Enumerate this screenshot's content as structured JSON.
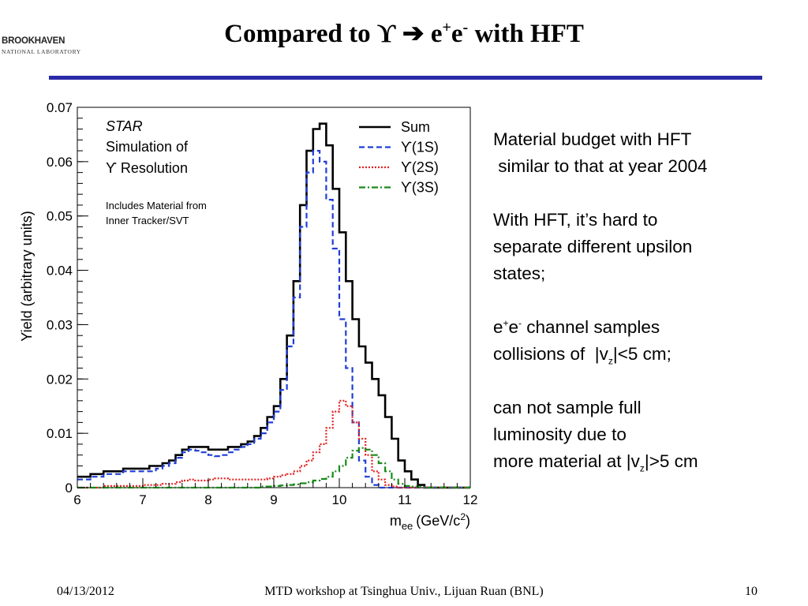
{
  "logo": {
    "name": "BROOKHAVEN",
    "subtitle": "NATIONAL LABORATORY"
  },
  "slide": {
    "title_pre": "Compared to ϒ ",
    "title_arrow": "➔",
    "title_e1": " e",
    "title_plus": "+",
    "title_e2": "e",
    "title_minus": "-",
    "title_post": " with HFT"
  },
  "notes": {
    "line1": "Material budget with HFT",
    "line2": " similar to that at year 2004",
    "line3": "With HFT, it’s hard to",
    "line4": "separate different upsilon",
    "line5": "states;",
    "l6_e1": "e",
    "l6_plus": "+",
    "l6_e2": "e",
    "l6_minus": "-",
    "l6_rest": " channel samples",
    "l7_pre": "collisions of  |v",
    "l7_sub": "z",
    "l7_post": "|<5 cm;",
    "line8": "can not sample full",
    "line9": "luminosity due to",
    "l10_pre": "more material at |v",
    "l10_sub": "z",
    "l10_post": "|>5 cm"
  },
  "footer": {
    "date": "04/13/2012",
    "center": "MTD workshop at Tsinghua Univ., Lijuan Ruan (BNL)",
    "page": "10"
  },
  "chart_data": {
    "type": "line",
    "style": "step-histogram",
    "x_label_main": "m",
    "x_label_sub": "ee",
    "x_label_unit": "(GeV/c",
    "x_label_sup": "2",
    "x_label_close": ")",
    "ylabel": "Yield (arbitrary units)",
    "xlim": [
      6,
      12
    ],
    "ylim": [
      0,
      0.07
    ],
    "xticks": [
      "6",
      "7",
      "8",
      "9",
      "10",
      "11",
      "12"
    ],
    "yticks": [
      "0",
      "0.01",
      "0.02",
      "0.03",
      "0.04",
      "0.05",
      "0.06",
      "0.07"
    ],
    "annotations": {
      "star": "STAR",
      "sim": "Simulation of",
      "res": "ϒ Resolution",
      "incl1": "Includes Material from",
      "incl2": "Inner Tracker/SVT"
    },
    "bin_edges_start": 6.0,
    "bin_width": 0.1,
    "series": [
      {
        "name": "Sum",
        "color": "#000000",
        "dash": "solid",
        "values": [
          0.002,
          0.002,
          0.0025,
          0.0025,
          0.003,
          0.003,
          0.003,
          0.0035,
          0.0035,
          0.0035,
          0.0035,
          0.004,
          0.004,
          0.0045,
          0.005,
          0.006,
          0.007,
          0.0075,
          0.0075,
          0.0075,
          0.007,
          0.007,
          0.007,
          0.0075,
          0.0075,
          0.008,
          0.0085,
          0.0095,
          0.011,
          0.013,
          0.015,
          0.02,
          0.028,
          0.038,
          0.052,
          0.062,
          0.066,
          0.067,
          0.063,
          0.055,
          0.047,
          0.038,
          0.031,
          0.026,
          0.023,
          0.02,
          0.017,
          0.013,
          0.009,
          0.005,
          0.003,
          0.0015,
          0.0005,
          0,
          0,
          0,
          0,
          0,
          0,
          0
        ]
      },
      {
        "name": "ϒ(1S)",
        "color": "#1f3ed8",
        "dash": "dashed",
        "values": [
          0.0015,
          0.0015,
          0.002,
          0.002,
          0.0025,
          0.0025,
          0.0025,
          0.003,
          0.003,
          0.003,
          0.003,
          0.003,
          0.0035,
          0.004,
          0.0045,
          0.0055,
          0.0065,
          0.007,
          0.0068,
          0.0065,
          0.006,
          0.0058,
          0.006,
          0.0065,
          0.007,
          0.0075,
          0.008,
          0.009,
          0.01,
          0.012,
          0.014,
          0.018,
          0.026,
          0.035,
          0.048,
          0.058,
          0.062,
          0.06,
          0.053,
          0.044,
          0.031,
          0.022,
          0.012,
          0.005,
          0.002,
          0.0005,
          0,
          0,
          0,
          0,
          0,
          0,
          0,
          0,
          0,
          0,
          0,
          0,
          0,
          0
        ]
      },
      {
        "name": "ϒ(2S)",
        "color": "#e32222",
        "dash": "dotted",
        "values": [
          0,
          0,
          0,
          0,
          0.0003,
          0.0003,
          0.0003,
          0.0003,
          0.0003,
          0.0003,
          0.0005,
          0.0005,
          0.0005,
          0.0007,
          0.0007,
          0.001,
          0.0013,
          0.0015,
          0.0013,
          0.0013,
          0.0015,
          0.0017,
          0.0017,
          0.0015,
          0.0015,
          0.0015,
          0.0015,
          0.0015,
          0.0015,
          0.0017,
          0.002,
          0.0023,
          0.0025,
          0.003,
          0.004,
          0.005,
          0.0065,
          0.008,
          0.011,
          0.014,
          0.016,
          0.015,
          0.012,
          0.009,
          0.006,
          0.003,
          0.0015,
          0.0005,
          0.0002,
          0,
          0,
          0,
          0,
          0,
          0,
          0,
          0,
          0,
          0,
          0
        ]
      },
      {
        "name": "ϒ(3S)",
        "color": "#1a8a1a",
        "dash": "dashdot",
        "values": [
          0,
          0,
          0,
          0,
          0,
          0,
          0,
          0,
          0,
          0,
          0,
          0,
          0,
          0,
          0,
          0,
          0,
          0,
          0,
          0,
          0,
          0,
          0,
          0,
          0,
          0,
          0,
          0,
          0.0002,
          0.0002,
          0.0003,
          0.0004,
          0.0005,
          0.0006,
          0.0008,
          0.001,
          0.0013,
          0.0016,
          0.002,
          0.003,
          0.004,
          0.0055,
          0.0068,
          0.0073,
          0.007,
          0.006,
          0.0045,
          0.003,
          0.0015,
          0.0007,
          0.0003,
          0.0002,
          0.0001,
          0,
          0,
          0,
          0,
          0,
          0,
          0
        ]
      }
    ]
  }
}
